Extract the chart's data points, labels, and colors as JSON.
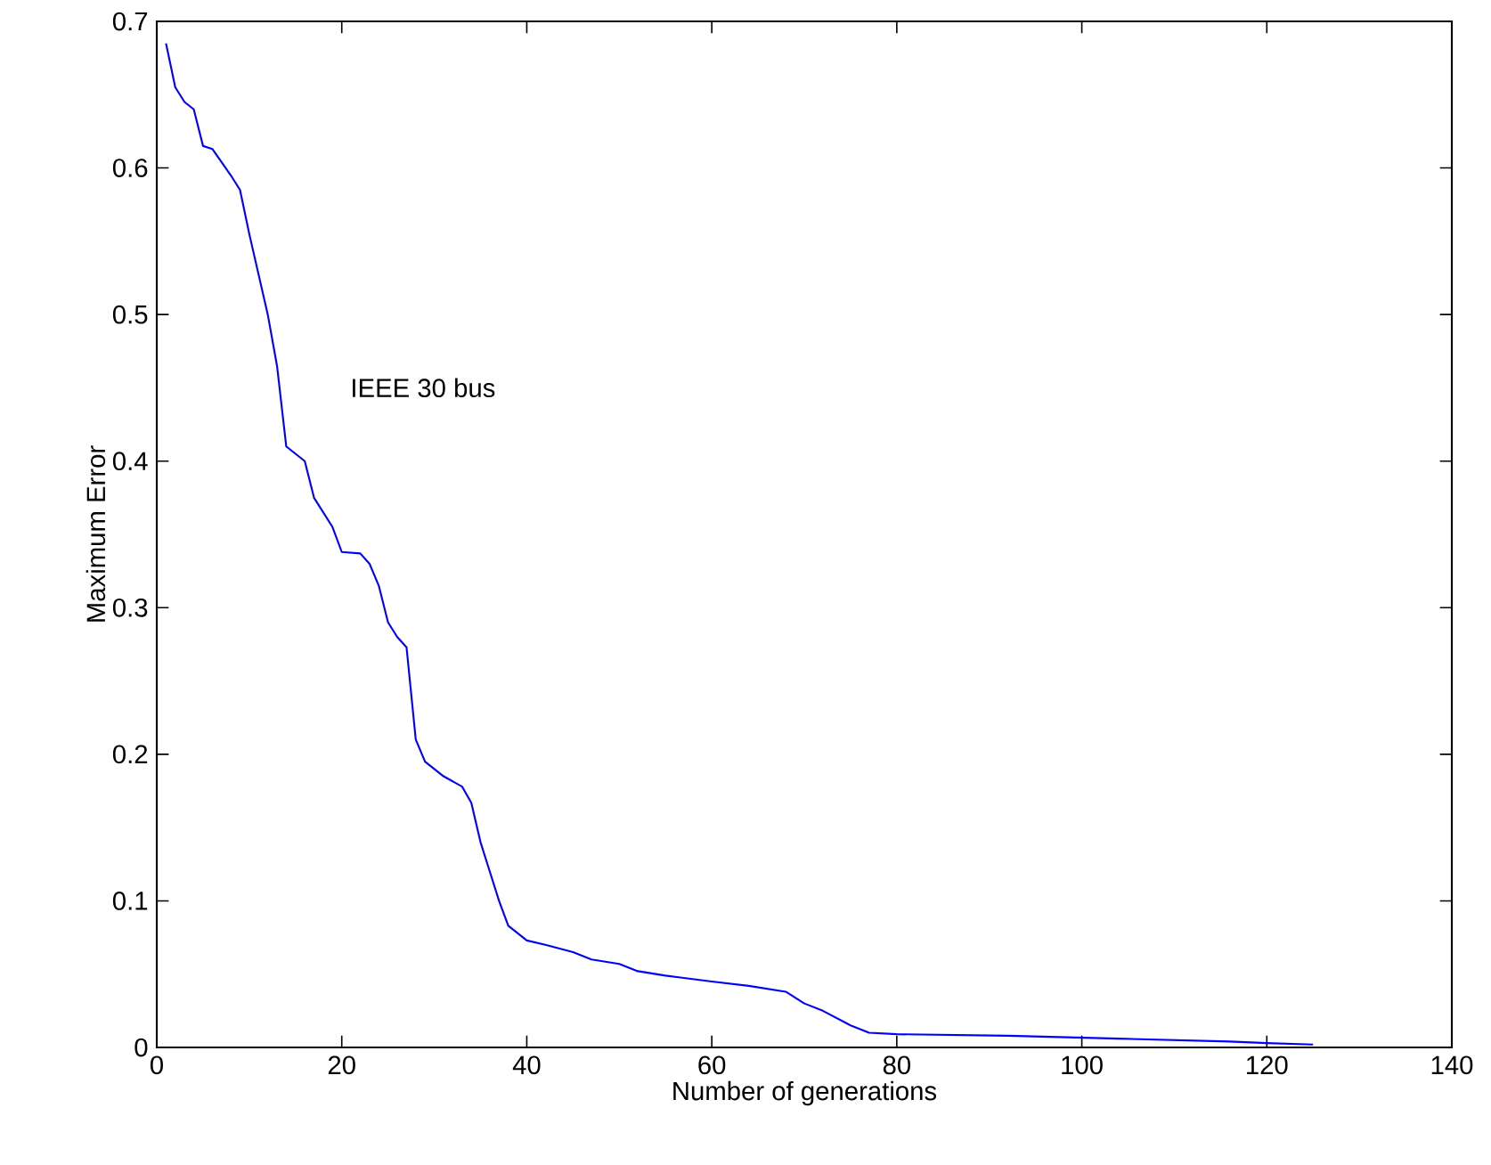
{
  "chart_data": {
    "type": "line",
    "xlabel": "Number of generations",
    "ylabel": "Maximum Error",
    "xlim": [
      0,
      140
    ],
    "ylim": [
      0,
      0.7
    ],
    "xticks": [
      0,
      20,
      40,
      60,
      80,
      100,
      120,
      140
    ],
    "yticks": [
      0,
      0.1,
      0.2,
      0.3,
      0.4,
      0.5,
      0.6,
      0.7
    ],
    "annotations": [
      "IEEE 30 bus"
    ],
    "series": [
      {
        "color": "#0000ff",
        "x": [
          1,
          2,
          3,
          4,
          5,
          6,
          8,
          9,
          10,
          12,
          13,
          14,
          15,
          16,
          17,
          19,
          20,
          22,
          23,
          24,
          25,
          26,
          27,
          28,
          29,
          31,
          33,
          34,
          35,
          36,
          37,
          38,
          40,
          42,
          45,
          47,
          50,
          52,
          55,
          60,
          64,
          68,
          70,
          72,
          75,
          77,
          80,
          92,
          104,
          116,
          120,
          125
        ],
        "values": [
          0.685,
          0.655,
          0.645,
          0.64,
          0.615,
          0.613,
          0.595,
          0.585,
          0.555,
          0.5,
          0.465,
          0.41,
          0.405,
          0.4,
          0.375,
          0.355,
          0.338,
          0.337,
          0.33,
          0.315,
          0.29,
          0.28,
          0.273,
          0.21,
          0.195,
          0.185,
          0.178,
          0.167,
          0.14,
          0.12,
          0.1,
          0.083,
          0.073,
          0.07,
          0.065,
          0.06,
          0.057,
          0.052,
          0.049,
          0.045,
          0.042,
          0.038,
          0.03,
          0.025,
          0.015,
          0.01,
          0.009,
          0.008,
          0.006,
          0.004,
          0.003,
          0.002
        ]
      }
    ]
  }
}
